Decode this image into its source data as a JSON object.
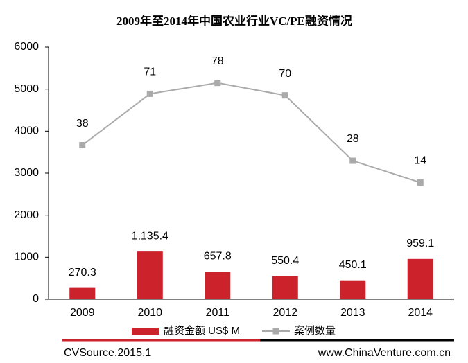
{
  "chart_data": {
    "type": "bar_line",
    "title": "2009年至2014年中国农业行业VC/PE融资情况",
    "categories": [
      "2009",
      "2010",
      "2011",
      "2012",
      "2013",
      "2014"
    ],
    "series": [
      {
        "name": "融资金额 US$ M",
        "type": "bar",
        "color": "#cc222b",
        "values": [
          270.3,
          1135.4,
          657.8,
          550.4,
          450.1,
          959.1
        ],
        "value_labels": [
          "270.3",
          "1,135.4",
          "657.8",
          "550.4",
          "450.1",
          "959.1"
        ]
      },
      {
        "name": "案例数量",
        "type": "line",
        "axis": "y2",
        "color": "#aaaaaa",
        "values": [
          38,
          71,
          78,
          70,
          28,
          14
        ]
      }
    ],
    "ylim": [
      0,
      6000
    ],
    "yticks": [
      0,
      1000,
      2000,
      3000,
      4000,
      5000,
      6000
    ],
    "y2lim": [
      -61,
      101
    ],
    "source": "CVSource,2015.1",
    "website": "www.ChinaVenture.com.cn"
  }
}
